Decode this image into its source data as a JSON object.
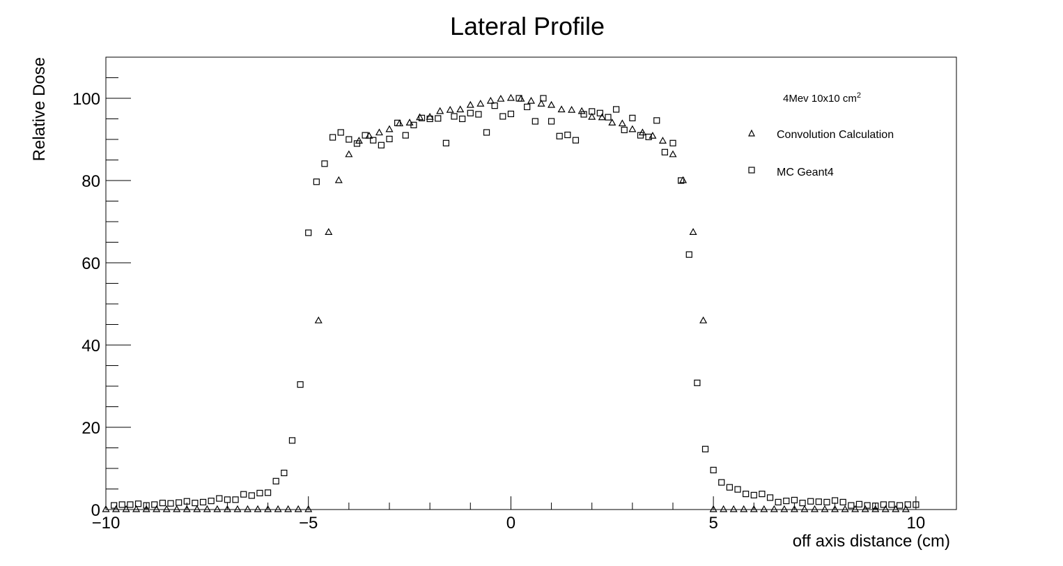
{
  "chart_data": {
    "type": "scatter",
    "title": "Lateral Profile",
    "xlabel": "off axis distance (cm)",
    "ylabel": "Relative Dose",
    "xlim": [
      -10,
      11
    ],
    "ylim": [
      0,
      110
    ],
    "x_ticks": [
      -10,
      -5,
      0,
      5,
      10
    ],
    "x_tick_labels": [
      "−10",
      "−5",
      "0",
      "5",
      "10"
    ],
    "y_ticks": [
      0,
      20,
      40,
      60,
      80,
      100
    ],
    "y_tick_labels": [
      "0",
      "20",
      "40",
      "60",
      "80",
      "100"
    ],
    "grid": false,
    "legend": {
      "placement": "top-right",
      "header": "4Mev 10x10 cm",
      "header_superscript": "2"
    },
    "series": [
      {
        "name": "Convolution Calculation",
        "marker": "open-triangle",
        "x": [
          -10.0,
          -9.75,
          -9.5,
          -9.25,
          -9.0,
          -8.75,
          -8.5,
          -8.25,
          -8.0,
          -7.75,
          -7.5,
          -7.25,
          -7.0,
          -6.75,
          -6.5,
          -6.25,
          -6.0,
          -5.75,
          -5.5,
          -5.25,
          -5.0,
          -4.75,
          -4.5,
          -4.25,
          -4.0,
          -3.75,
          -3.5,
          -3.25,
          -3.0,
          -2.75,
          -2.5,
          -2.25,
          -2.0,
          -1.75,
          -1.5,
          -1.25,
          -1.0,
          -0.75,
          -0.5,
          -0.25,
          0.0,
          0.25,
          0.5,
          0.75,
          1.0,
          1.25,
          1.5,
          1.75,
          2.0,
          2.25,
          2.5,
          2.75,
          3.0,
          3.25,
          3.5,
          3.75,
          4.0,
          4.25,
          4.5,
          4.75,
          5.0,
          5.25,
          5.5,
          5.75,
          6.0,
          6.25,
          6.5,
          6.75,
          7.0,
          7.25,
          7.5,
          7.75,
          8.0,
          8.25,
          8.5,
          8.75,
          9.0,
          9.25,
          9.5,
          9.75
        ],
        "values": [
          0,
          0,
          0,
          0,
          0,
          0,
          0,
          0,
          0,
          0,
          0,
          0,
          0,
          0,
          0,
          0,
          0,
          0,
          0,
          0,
          0,
          45.9,
          67.4,
          80.0,
          86.3,
          89.6,
          90.8,
          91.6,
          92.4,
          93.8,
          94.0,
          95.3,
          95.4,
          96.8,
          97.1,
          97.2,
          98.3,
          98.6,
          99.3,
          99.8,
          100.0,
          99.8,
          99.3,
          98.6,
          98.3,
          97.2,
          97.1,
          96.8,
          95.4,
          95.3,
          94.0,
          93.8,
          92.4,
          91.6,
          90.8,
          89.6,
          86.3,
          80.0,
          67.4,
          45.9,
          0,
          0,
          0,
          0,
          0,
          0,
          0,
          0,
          0,
          0,
          0,
          0,
          0,
          0,
          0,
          0,
          0,
          0,
          0,
          0
        ]
      },
      {
        "name": "MC Geant4",
        "marker": "open-square",
        "x": [
          -9.8,
          -9.6,
          -9.4,
          -9.2,
          -9.0,
          -8.8,
          -8.6,
          -8.4,
          -8.2,
          -8.0,
          -7.8,
          -7.6,
          -7.4,
          -7.2,
          -7.0,
          -6.8,
          -6.6,
          -6.4,
          -6.2,
          -6.0,
          -5.8,
          -5.6,
          -5.4,
          -5.2,
          -5.0,
          -4.8,
          -4.6,
          -4.4,
          -4.2,
          -4.0,
          -3.8,
          -3.6,
          -3.4,
          -3.2,
          -3.0,
          -2.8,
          -2.6,
          -2.4,
          -2.2,
          -2.0,
          -1.8,
          -1.6,
          -1.4,
          -1.2,
          -1.0,
          -0.8,
          -0.6,
          -0.4,
          -0.2,
          0.0,
          0.2,
          0.4,
          0.6,
          0.8,
          1.0,
          1.2,
          1.4,
          1.6,
          1.8,
          2.0,
          2.2,
          2.4,
          2.6,
          2.8,
          3.0,
          3.2,
          3.4,
          3.6,
          3.8,
          4.0,
          4.2,
          4.4,
          4.6,
          4.8,
          5.0,
          5.2,
          5.4,
          5.6,
          5.8,
          6.0,
          6.2,
          6.4,
          6.6,
          6.8,
          7.0,
          7.2,
          7.4,
          7.6,
          7.8,
          8.0,
          8.2,
          8.4,
          8.6,
          8.8,
          9.0,
          9.2,
          9.4,
          9.6,
          9.8,
          10.0
        ],
        "values": [
          1.0,
          1.2,
          1.2,
          1.4,
          1.0,
          1.2,
          1.6,
          1.5,
          1.7,
          2.0,
          1.6,
          1.8,
          2.1,
          2.7,
          2.4,
          2.4,
          3.7,
          3.4,
          4.0,
          4.1,
          6.9,
          8.9,
          16.8,
          30.4,
          67.3,
          79.7,
          84.1,
          90.5,
          91.7,
          90.0,
          89.0,
          91.0,
          89.8,
          88.6,
          90.1,
          94.0,
          91.0,
          93.5,
          95.2,
          95.0,
          95.1,
          89.1,
          95.6,
          95.0,
          96.4,
          96.1,
          91.7,
          98.2,
          95.6,
          96.2,
          100.0,
          97.9,
          94.4,
          100.0,
          94.4,
          90.8,
          91.1,
          89.8,
          96.1,
          96.8,
          96.4,
          95.4,
          97.3,
          92.3,
          95.2,
          91.0,
          90.6,
          94.6,
          86.9,
          89.1,
          80.0,
          62.0,
          30.8,
          14.7,
          9.6,
          6.6,
          5.4,
          4.9,
          3.8,
          3.5,
          3.8,
          2.9,
          1.8,
          2.1,
          2.3,
          1.6,
          2.0,
          1.9,
          1.8,
          2.2,
          1.8,
          1.0,
          1.3,
          1.0,
          0.9,
          1.2,
          1.2,
          1.0,
          1.2,
          1.2
        ]
      }
    ]
  }
}
